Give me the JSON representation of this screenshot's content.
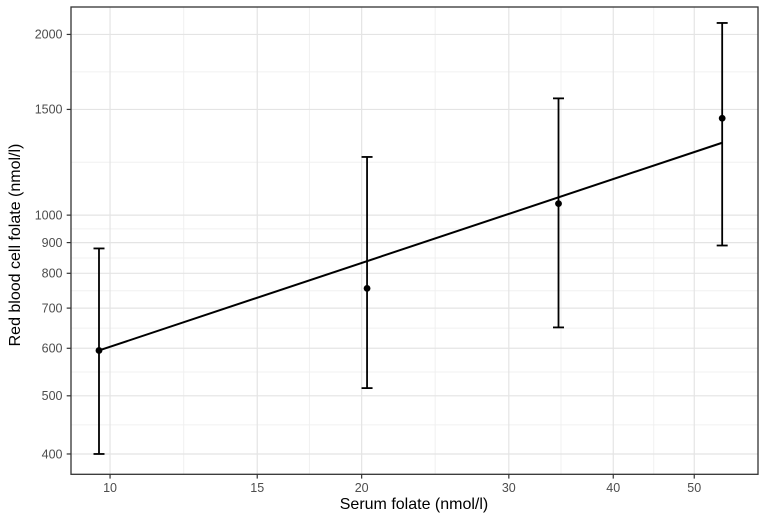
{
  "chart_data": {
    "type": "scatter",
    "title": "",
    "xlabel": "Serum folate (nmol/l)",
    "ylabel": "Red blood cell folate (nmol/l)",
    "x_scale": "log10",
    "y_scale": "log10",
    "xlim": [
      8.98,
      59.6
    ],
    "ylim": [
      370,
      2222
    ],
    "x_ticks": [
      10,
      15,
      20,
      30,
      40,
      50
    ],
    "y_ticks": [
      400,
      500,
      600,
      700,
      800,
      900,
      1000,
      1500,
      2000
    ],
    "x_minor_gridlines": [
      12.25,
      17.32,
      24.49,
      34.64,
      44.72
    ],
    "y_minor_gridlines": [
      447.2,
      547.7,
      648.1,
      748.3,
      848.5,
      948.7,
      1224.7,
      1732.1
    ],
    "grid": true,
    "legend_position": "none",
    "points": [
      {
        "x": 9.7,
        "y": 595,
        "ymin": 400,
        "ymax": 880
      },
      {
        "x": 20.3,
        "y": 755,
        "ymin": 515,
        "ymax": 1250
      },
      {
        "x": 34.4,
        "y": 1045,
        "ymin": 650,
        "ymax": 1565
      },
      {
        "x": 54.0,
        "y": 1450,
        "ymin": 890,
        "ymax": 2090
      }
    ],
    "trend_line": {
      "x1": 9.7,
      "y1": 595,
      "x2": 54.0,
      "y2": 1320
    }
  },
  "colors": {
    "background": "#ffffff",
    "panel_border": "#333333",
    "grid_major": "#e4e4e4",
    "grid_minor": "#f0f0f0",
    "tick_mark": "#333333",
    "tick_label": "#4d4d4d",
    "axis_title": "#000000",
    "data": "#000000"
  }
}
